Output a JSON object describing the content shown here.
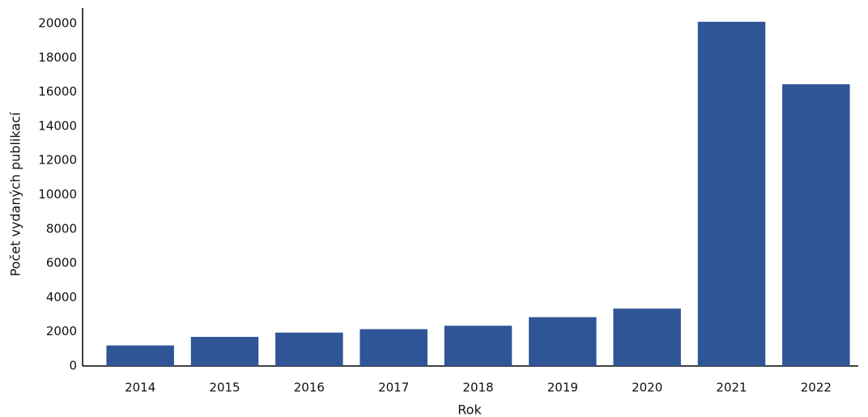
{
  "chart_data": {
    "type": "bar",
    "x_label": "Rok",
    "y_label": "Počet vydaných publikací",
    "categories": [
      "2014",
      "2015",
      "2016",
      "2017",
      "2018",
      "2019",
      "2020",
      "2021",
      "2022"
    ],
    "values": [
      1200,
      1700,
      1950,
      2150,
      2350,
      2850,
      3350,
      20100,
      16450
    ],
    "color": "#2f5597",
    "ylim": [
      0,
      21000
    ],
    "yticks": [
      0,
      2000,
      4000,
      6000,
      8000,
      10000,
      12000,
      14000,
      16000,
      18000,
      20000
    ],
    "grid": false
  }
}
